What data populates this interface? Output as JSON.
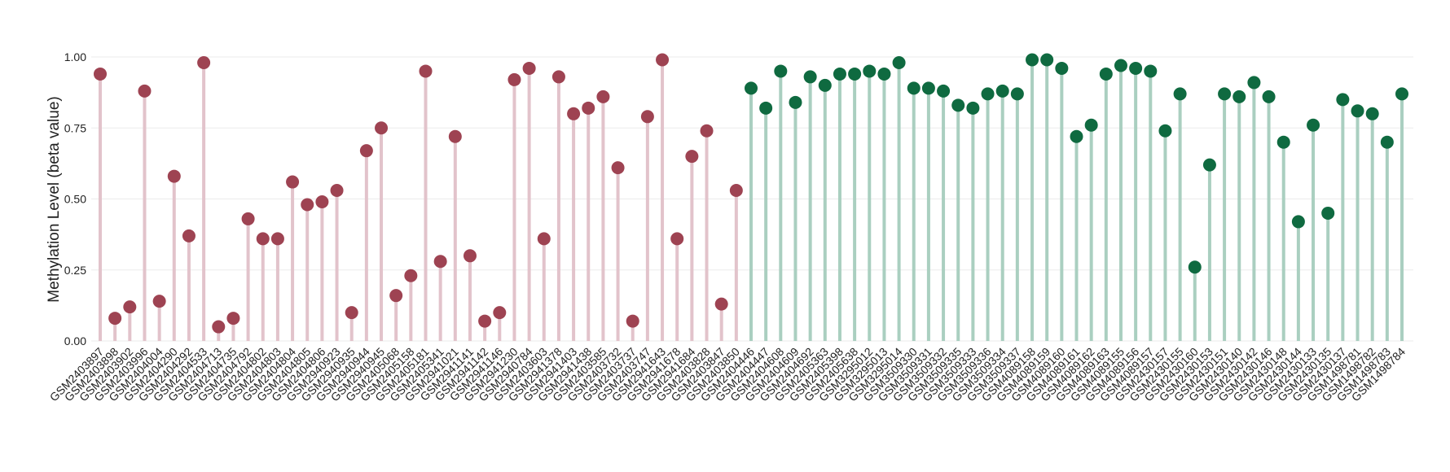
{
  "chart_data": {
    "type": "lollipop",
    "y_label": "Methylation Level (beta value)",
    "categories": [
      "GSM2403897",
      "GSM2403898",
      "GSM2403902",
      "GSM2403996",
      "GSM2404004",
      "GSM2404290",
      "GSM2404292",
      "GSM2404533",
      "GSM2404713",
      "GSM2404735",
      "GSM2404792",
      "GSM2404802",
      "GSM2404803",
      "GSM2404804",
      "GSM2404805",
      "GSM2404806",
      "GSM2940923",
      "GSM2940935",
      "GSM2940944",
      "GSM2940945",
      "GSM2405068",
      "GSM2405158",
      "GSM2405181",
      "GSM2405341",
      "GSM2941021",
      "GSM2941141",
      "GSM2941142",
      "GSM2941146",
      "GSM2941230",
      "GSM2940784",
      "GSM2403603",
      "GSM2941378",
      "GSM2941403",
      "GSM2941438",
      "GSM2403585",
      "GSM2403732",
      "GSM2403737",
      "GSM2403747",
      "GSM2941643",
      "GSM2941678",
      "GSM2941684",
      "GSM2403828",
      "GSM2403847",
      "GSM2403850",
      "GSM2404446",
      "GSM2404447",
      "GSM2404608",
      "GSM2404609",
      "GSM2404692",
      "GSM2405363",
      "GSM2405398",
      "GSM2405638",
      "GSM3295012",
      "GSM3295013",
      "GSM3295014",
      "GSM3509330",
      "GSM3509331",
      "GSM3509332",
      "GSM3509335",
      "GSM3509333",
      "GSM3509336",
      "GSM3509334",
      "GSM3509337",
      "GSM4089158",
      "GSM4089159",
      "GSM4089160",
      "GSM4089161",
      "GSM4089162",
      "GSM4089163",
      "GSM4089155",
      "GSM4089156",
      "GSM4089157",
      "GSM2430157",
      "GSM2430155",
      "GSM2430160",
      "GSM2430153",
      "GSM2430151",
      "GSM2430140",
      "GSM2430142",
      "GSM2430146",
      "GSM2430148",
      "GSM2430144",
      "GSM2430133",
      "GSM2430135",
      "GSM2430137",
      "GSM1498781",
      "GSM1498782",
      "GSM1498783",
      "GSM1498784"
    ],
    "series": [
      {
        "color": "#9e4352",
        "stem_color": "#e2c3cb",
        "values": [
          0.94,
          0.08,
          0.12,
          0.88,
          0.14,
          0.58,
          0.37,
          0.98,
          0.05,
          0.08,
          0.43,
          0.36,
          0.36,
          0.56,
          0.48,
          0.49,
          0.53,
          0.1,
          0.67,
          0.75,
          0.16,
          0.23,
          0.95,
          0.28,
          0.72,
          0.3,
          0.07,
          0.1,
          0.92,
          0.96,
          0.36,
          0.93,
          0.8,
          0.82,
          0.86,
          0.61,
          0.07,
          0.79,
          0.99,
          0.36,
          0.65,
          0.74,
          0.13,
          0.53,
          null,
          null,
          null,
          null,
          null,
          null,
          null,
          null,
          null,
          null,
          null,
          null,
          null,
          null,
          null,
          null,
          null,
          null,
          null,
          null,
          null,
          null,
          null,
          null,
          null,
          null,
          null,
          null,
          null,
          null,
          null,
          null,
          null,
          null,
          null,
          null,
          null,
          null,
          null,
          null,
          null,
          null,
          null,
          null,
          null
        ]
      },
      {
        "color": "#0f6a40",
        "stem_color": "#aacfc0",
        "values": [
          null,
          null,
          null,
          null,
          null,
          null,
          null,
          null,
          null,
          null,
          null,
          null,
          null,
          null,
          null,
          null,
          null,
          null,
          null,
          null,
          null,
          null,
          null,
          null,
          null,
          null,
          null,
          null,
          null,
          null,
          null,
          null,
          null,
          null,
          null,
          null,
          null,
          null,
          null,
          null,
          null,
          null,
          null,
          null,
          0.89,
          0.82,
          0.95,
          0.84,
          0.93,
          0.9,
          0.94,
          0.94,
          0.95,
          0.94,
          0.98,
          0.89,
          0.89,
          0.88,
          0.83,
          0.82,
          0.87,
          0.88,
          0.87,
          0.99,
          0.99,
          0.96,
          0.72,
          0.76,
          0.94,
          0.97,
          0.96,
          0.95,
          0.74,
          0.87,
          0.26,
          0.62,
          0.87,
          0.86,
          0.91,
          0.86,
          0.7,
          0.42,
          0.76,
          0.45,
          0.85,
          0.81,
          0.8,
          0.7,
          0.87
        ]
      }
    ],
    "ylim": [
      0,
      1
    ],
    "yticks": [
      {
        "value": 0,
        "label": "0.00"
      },
      {
        "value": 0.25,
        "label": "0.25"
      },
      {
        "value": 0.5,
        "label": "0.50"
      },
      {
        "value": 0.75,
        "label": "0.75"
      },
      {
        "value": 1,
        "label": "1.00"
      }
    ],
    "grid": true
  }
}
